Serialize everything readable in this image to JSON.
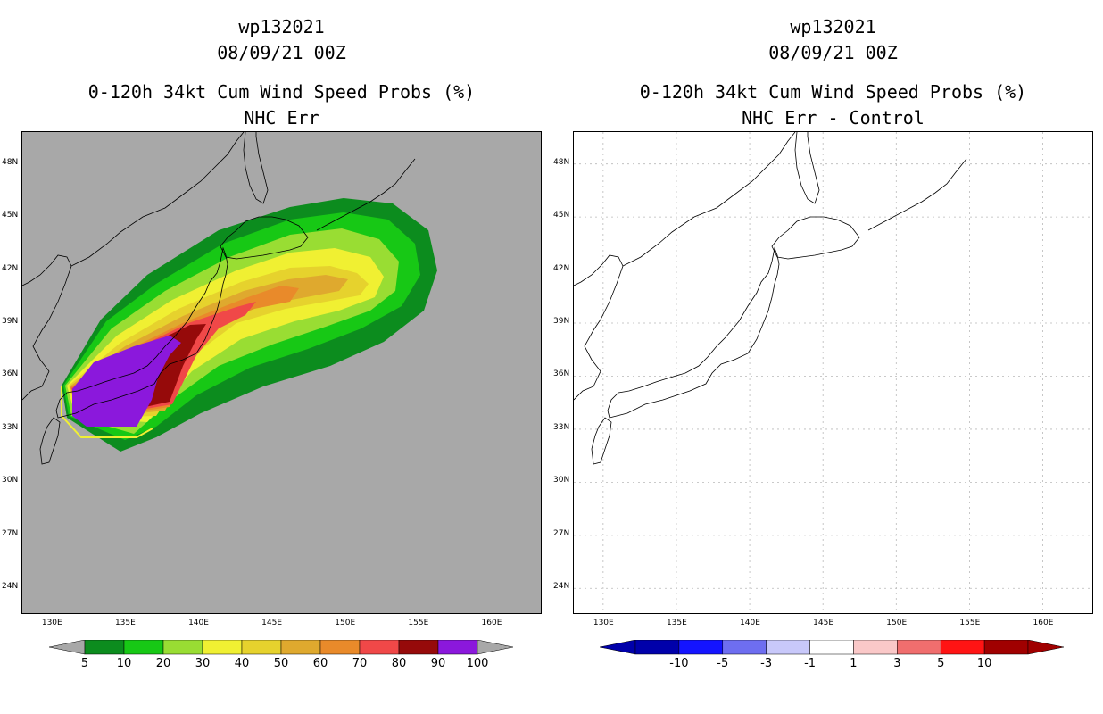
{
  "left_panel": {
    "title_line1": "wp132021",
    "title_line2": "08/09/21 00Z",
    "title_line3": "0-120h 34kt Cum Wind Speed Probs (%)",
    "title_line4": "NHC Err",
    "background": "#a8a8a8",
    "colorbar": {
      "labels": [
        "5",
        "10",
        "20",
        "30",
        "40",
        "50",
        "60",
        "70",
        "80",
        "90",
        "100"
      ],
      "colors": [
        "#0c8c1e",
        "#17c815",
        "#99dd33",
        "#f0f032",
        "#e6d22d",
        "#dfa92e",
        "#e98a2a",
        "#f04848",
        "#960a0a",
        "#8b18dc"
      ]
    }
  },
  "right_panel": {
    "title_line1": "wp132021",
    "title_line2": "08/09/21 00Z",
    "title_line3": "0-120h 34kt Cum Wind Speed Probs (%)",
    "title_line4": "NHC Err - Control",
    "background": "#ffffff",
    "colorbar": {
      "labels": [
        "-10",
        "-5",
        "-3",
        "-1",
        "1",
        "3",
        "5",
        "10"
      ],
      "colors": [
        "#0000aa",
        "#1414ff",
        "#6e6ef0",
        "#c8c8fa",
        "#ffffff",
        "#fac8c8",
        "#f06e6e",
        "#ff1414",
        "#a00000"
      ]
    }
  },
  "axes": {
    "lon_labels": [
      "130E",
      "135E",
      "140E",
      "145E",
      "150E",
      "155E",
      "160E"
    ],
    "lon_values": [
      130,
      135,
      140,
      145,
      150,
      155,
      160
    ],
    "lat_labels": [
      "48N",
      "45N",
      "42N",
      "39N",
      "36N",
      "33N",
      "30N",
      "27N",
      "24N"
    ],
    "lat_values": [
      48,
      45,
      42,
      39,
      36,
      33,
      30,
      27,
      24
    ],
    "lon_range": [
      128,
      163.5
    ],
    "lat_range": [
      22.5,
      49.8
    ]
  },
  "probability_contours": {
    "levels": [
      5,
      10,
      20,
      30,
      40,
      50,
      60,
      70,
      80,
      90
    ]
  }
}
